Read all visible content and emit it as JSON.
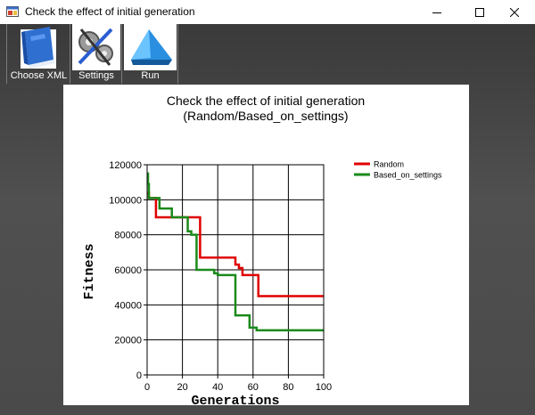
{
  "window": {
    "title": "Check the effect of initial generation"
  },
  "toolbar": {
    "items": [
      {
        "label": "Choose XML",
        "icon": "blue-book-icon"
      },
      {
        "label": "Settings",
        "icon": "gears-tools-icon"
      },
      {
        "label": "Run",
        "icon": "play-triangle-icon"
      }
    ]
  },
  "chart_data": {
    "type": "line",
    "title": "Check the effect of initial generation",
    "subtitle": "(Random/Based_on_settings)",
    "xlabel": "Generations",
    "ylabel": "Fitness",
    "xlim": [
      0,
      100
    ],
    "ylim": [
      0,
      120000
    ],
    "xticks": [
      "0",
      "20",
      "40",
      "60",
      "80",
      "100"
    ],
    "yticks": [
      "0",
      "20000",
      "40000",
      "60000",
      "80000",
      "100000",
      "120000"
    ],
    "grid": true,
    "legend_position": "top-right",
    "series": [
      {
        "name": "Random",
        "color": "#e00000",
        "x": [
          0,
          1,
          1,
          5,
          5,
          14,
          14,
          30,
          30,
          50,
          50,
          52,
          52,
          54,
          54,
          63,
          63,
          100
        ],
        "y": [
          104000,
          104000,
          101000,
          101000,
          90000,
          90000,
          90000,
          90000,
          67000,
          67000,
          63000,
          63000,
          61000,
          61000,
          57000,
          57000,
          45000,
          45000
        ]
      },
      {
        "name": "Based_on_settings",
        "color": "#1a8a1a",
        "x": [
          0,
          0.5,
          0.5,
          1,
          1,
          7,
          7,
          14,
          14,
          21,
          21,
          23,
          23,
          25,
          25,
          28,
          28,
          38,
          38,
          40,
          40,
          50,
          50,
          58,
          58,
          60,
          60,
          62,
          62,
          100
        ],
        "y": [
          115000,
          115000,
          109000,
          109000,
          101000,
          101000,
          95000,
          95000,
          90000,
          90000,
          90000,
          90000,
          82000,
          82000,
          80000,
          80000,
          60000,
          60000,
          58000,
          58000,
          57000,
          57000,
          34000,
          34000,
          27000,
          27000,
          27000,
          27000,
          25500,
          25500
        ]
      }
    ]
  }
}
